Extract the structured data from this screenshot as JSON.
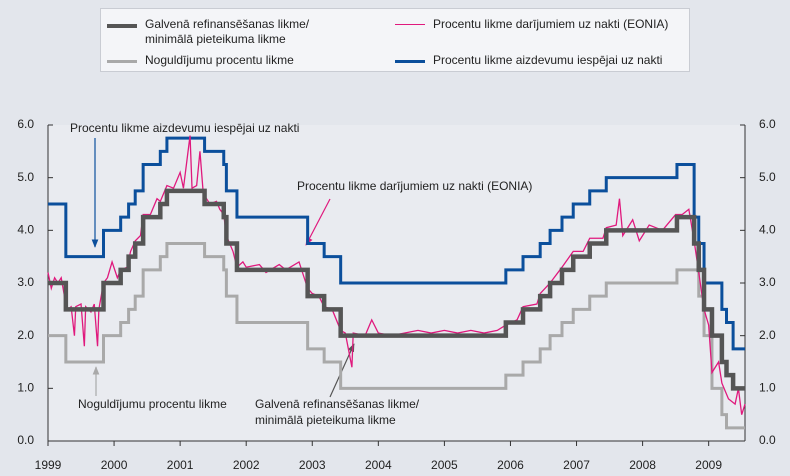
{
  "chart_data": {
    "type": "line",
    "xlim": [
      1999,
      2009.55
    ],
    "xticks": [
      1999,
      2000,
      2001,
      2002,
      2003,
      2004,
      2005,
      2006,
      2007,
      2008,
      2009
    ],
    "ylim": [
      0,
      6
    ],
    "yticks": [
      {
        "value": 0,
        "label": "0.0"
      },
      {
        "value": 1,
        "label": "1.0"
      },
      {
        "value": 2,
        "label": "2.0"
      },
      {
        "value": 3,
        "label": "3.0"
      },
      {
        "value": 4,
        "label": "4.0"
      },
      {
        "value": 5,
        "label": "5.0"
      },
      {
        "value": 6,
        "label": "6.0"
      }
    ],
    "series": [
      {
        "name": "Galvenā refinansēšanas likme/ minimālā pieteikuma likme",
        "color": "#555555",
        "width": 4.5,
        "x": [
          1999.0,
          1999.27,
          1999.27,
          1999.84,
          1999.84,
          2000.1,
          2000.1,
          2000.22,
          2000.22,
          2000.32,
          2000.32,
          2000.44,
          2000.44,
          2000.7,
          2000.7,
          2000.8,
          2000.8,
          2001.37,
          2001.37,
          2001.66,
          2001.66,
          2001.7,
          2001.7,
          2001.86,
          2001.86,
          2002.93,
          2002.93,
          2003.18,
          2003.18,
          2003.43,
          2003.43,
          2005.93,
          2005.93,
          2006.19,
          2006.19,
          2006.45,
          2006.45,
          2006.6,
          2006.6,
          2006.78,
          2006.78,
          2006.95,
          2006.95,
          2007.2,
          2007.2,
          2007.45,
          2007.45,
          2008.52,
          2008.52,
          2008.78,
          2008.78,
          2008.85,
          2008.85,
          2008.93,
          2008.93,
          2009.05,
          2009.05,
          2009.2,
          2009.2,
          2009.27,
          2009.27,
          2009.37,
          2009.37,
          2009.55
        ],
        "values": [
          3,
          3,
          2.5,
          2.5,
          3,
          3,
          3.25,
          3.25,
          3.5,
          3.5,
          3.75,
          3.75,
          4.25,
          4.25,
          4.5,
          4.5,
          4.75,
          4.75,
          4.5,
          4.5,
          4.25,
          4.25,
          3.75,
          3.75,
          3.25,
          3.25,
          2.75,
          2.75,
          2.5,
          2.5,
          2,
          2,
          2.25,
          2.25,
          2.5,
          2.5,
          2.75,
          2.75,
          3,
          3,
          3.25,
          3.25,
          3.5,
          3.5,
          3.75,
          3.75,
          4,
          4,
          4.25,
          4.25,
          3.75,
          3.75,
          3.25,
          3.25,
          2.5,
          2.5,
          2,
          2,
          1.5,
          1.5,
          1.25,
          1.25,
          1,
          1
        ]
      },
      {
        "name": "Procentu likme darījumiem uz nakti (EONIA)",
        "color": "#e0197d",
        "width": 1.3,
        "x": [
          1999.0,
          1999.05,
          1999.1,
          1999.15,
          1999.2,
          1999.27,
          1999.3,
          1999.35,
          1999.4,
          1999.42,
          1999.5,
          1999.55,
          1999.57,
          1999.65,
          1999.7,
          1999.75,
          1999.77,
          1999.84,
          1999.9,
          1999.97,
          2000.05,
          2000.1,
          2000.2,
          2000.25,
          2000.32,
          2000.4,
          2000.44,
          2000.55,
          2000.65,
          2000.7,
          2000.8,
          2000.9,
          2001.0,
          2001.05,
          2001.15,
          2001.18,
          2001.25,
          2001.3,
          2001.35,
          2001.45,
          2001.55,
          2001.6,
          2001.66,
          2001.7,
          2001.8,
          2001.86,
          2001.95,
          2002.0,
          2002.2,
          2002.3,
          2002.5,
          2002.6,
          2002.8,
          2002.93,
          2003.0,
          2003.1,
          2003.18,
          2003.3,
          2003.43,
          2003.5,
          2003.6,
          2003.62,
          2003.8,
          2003.9,
          2004.0,
          2004.2,
          2004.4,
          2004.6,
          2004.8,
          2005.0,
          2005.2,
          2005.4,
          2005.6,
          2005.8,
          2005.93,
          2006.1,
          2006.19,
          2006.4,
          2006.45,
          2006.6,
          2006.78,
          2006.95,
          2007.1,
          2007.2,
          2007.4,
          2007.45,
          2007.6,
          2007.65,
          2007.7,
          2007.85,
          2007.95,
          2008.1,
          2008.3,
          2008.5,
          2008.6,
          2008.7,
          2008.78,
          2008.85,
          2008.93,
          2009.0,
          2009.05,
          2009.15,
          2009.2,
          2009.3,
          2009.4,
          2009.45,
          2009.5,
          2009.55
        ],
        "values": [
          3.2,
          2.9,
          3.1,
          3.0,
          3.1,
          2.6,
          2.5,
          2.55,
          2.0,
          2.55,
          2.6,
          1.8,
          2.55,
          2.45,
          2.6,
          1.8,
          2.5,
          3.0,
          3.1,
          3.4,
          3.1,
          3.25,
          3.3,
          3.6,
          3.8,
          3.9,
          4.3,
          4.3,
          4.6,
          4.55,
          4.85,
          4.8,
          5.1,
          4.8,
          5.8,
          4.8,
          4.85,
          5.5,
          4.7,
          4.5,
          4.55,
          4.4,
          4.3,
          3.9,
          3.6,
          3.3,
          3.4,
          3.3,
          3.35,
          3.2,
          3.35,
          3.25,
          3.4,
          2.9,
          2.8,
          2.75,
          2.55,
          2.5,
          2.1,
          2.05,
          1.4,
          2.05,
          2.0,
          2.3,
          2.05,
          2.0,
          2.05,
          2.1,
          2.05,
          2.1,
          2.05,
          2.1,
          2.05,
          2.1,
          2.2,
          2.3,
          2.55,
          2.6,
          2.8,
          3.0,
          3.3,
          3.6,
          3.6,
          3.85,
          3.85,
          4.05,
          4.1,
          4.6,
          3.9,
          4.2,
          3.8,
          4.1,
          4.0,
          4.3,
          4.3,
          4.4,
          3.8,
          3.2,
          2.5,
          2.2,
          1.3,
          1.5,
          1.1,
          0.8,
          0.7,
          1.0,
          0.5,
          0.7
        ]
      },
      {
        "name": "Noguldījumu procentu likme",
        "color": "#a9a9a9",
        "width": 3,
        "x": [
          1999.0,
          1999.27,
          1999.27,
          1999.84,
          1999.84,
          2000.1,
          2000.1,
          2000.22,
          2000.22,
          2000.32,
          2000.32,
          2000.44,
          2000.44,
          2000.7,
          2000.7,
          2000.8,
          2000.8,
          2001.37,
          2001.37,
          2001.66,
          2001.66,
          2001.7,
          2001.7,
          2001.86,
          2001.86,
          2002.93,
          2002.93,
          2003.18,
          2003.18,
          2003.43,
          2003.43,
          2005.93,
          2005.93,
          2006.19,
          2006.19,
          2006.45,
          2006.45,
          2006.6,
          2006.6,
          2006.78,
          2006.78,
          2006.95,
          2006.95,
          2007.2,
          2007.2,
          2007.45,
          2007.45,
          2008.52,
          2008.52,
          2008.78,
          2008.78,
          2008.85,
          2008.85,
          2008.93,
          2008.93,
          2009.05,
          2009.05,
          2009.2,
          2009.2,
          2009.27,
          2009.27,
          2009.37,
          2009.37,
          2009.55
        ],
        "values": [
          2,
          2,
          1.5,
          1.5,
          2,
          2,
          2.25,
          2.25,
          2.5,
          2.5,
          2.75,
          2.75,
          3.25,
          3.25,
          3.5,
          3.5,
          3.75,
          3.75,
          3.5,
          3.5,
          3.25,
          3.25,
          2.75,
          2.75,
          2.25,
          2.25,
          1.75,
          1.75,
          1.5,
          1.5,
          1,
          1,
          1.25,
          1.25,
          1.5,
          1.5,
          1.75,
          1.75,
          2,
          2,
          2.25,
          2.25,
          2.5,
          2.5,
          2.75,
          2.75,
          3,
          3,
          3.25,
          3.25,
          3.25,
          3.25,
          2.75,
          2.75,
          2,
          2,
          1,
          1,
          0.5,
          0.5,
          0.25,
          0.25,
          0.25,
          0.25
        ]
      },
      {
        "name": "Procentu likme aizdevumu iespējai uz nakti",
        "color": "#0b4f9c",
        "width": 3,
        "x": [
          1999.0,
          1999.27,
          1999.27,
          1999.84,
          1999.84,
          2000.1,
          2000.1,
          2000.22,
          2000.22,
          2000.32,
          2000.32,
          2000.44,
          2000.44,
          2000.7,
          2000.7,
          2000.8,
          2000.8,
          2001.37,
          2001.37,
          2001.66,
          2001.66,
          2001.7,
          2001.7,
          2001.86,
          2001.86,
          2002.93,
          2002.93,
          2003.18,
          2003.18,
          2003.43,
          2003.43,
          2005.93,
          2005.93,
          2006.19,
          2006.19,
          2006.45,
          2006.45,
          2006.6,
          2006.6,
          2006.78,
          2006.78,
          2006.95,
          2006.95,
          2007.2,
          2007.2,
          2007.45,
          2007.45,
          2008.52,
          2008.52,
          2008.78,
          2008.78,
          2008.85,
          2008.85,
          2008.93,
          2008.93,
          2009.05,
          2009.05,
          2009.2,
          2009.2,
          2009.27,
          2009.27,
          2009.37,
          2009.37,
          2009.55
        ],
        "values": [
          4.5,
          4.5,
          3.5,
          3.5,
          4,
          4,
          4.25,
          4.25,
          4.5,
          4.5,
          4.75,
          4.75,
          5.25,
          5.25,
          5.5,
          5.5,
          5.75,
          5.75,
          5.5,
          5.5,
          5.25,
          5.25,
          4.75,
          4.75,
          4.25,
          4.25,
          3.75,
          3.75,
          3.5,
          3.5,
          3,
          3,
          3.25,
          3.25,
          3.5,
          3.5,
          3.75,
          3.75,
          4,
          4,
          4.25,
          4.25,
          4.5,
          4.5,
          4.75,
          4.75,
          5,
          5,
          5.25,
          5.25,
          4.25,
          4.25,
          3.75,
          3.75,
          3,
          3,
          3,
          3,
          2.5,
          2.5,
          2.25,
          2.25,
          1.75,
          1.75
        ]
      }
    ],
    "draw_order": [
      2,
      3,
      1,
      0
    ],
    "annotations": [
      {
        "lines": [
          "Procentu likme aizdevumu iespējai uz nakti"
        ]
      },
      {
        "lines": [
          "Procentu likme darījumiem uz nakti (EONIA)"
        ]
      },
      {
        "lines": [
          "Noguldījumu procentu likme"
        ]
      },
      {
        "lines": [
          "Galvenā refinansēšanas likme/",
          "minimālā pieteikuma likme"
        ]
      }
    ]
  }
}
